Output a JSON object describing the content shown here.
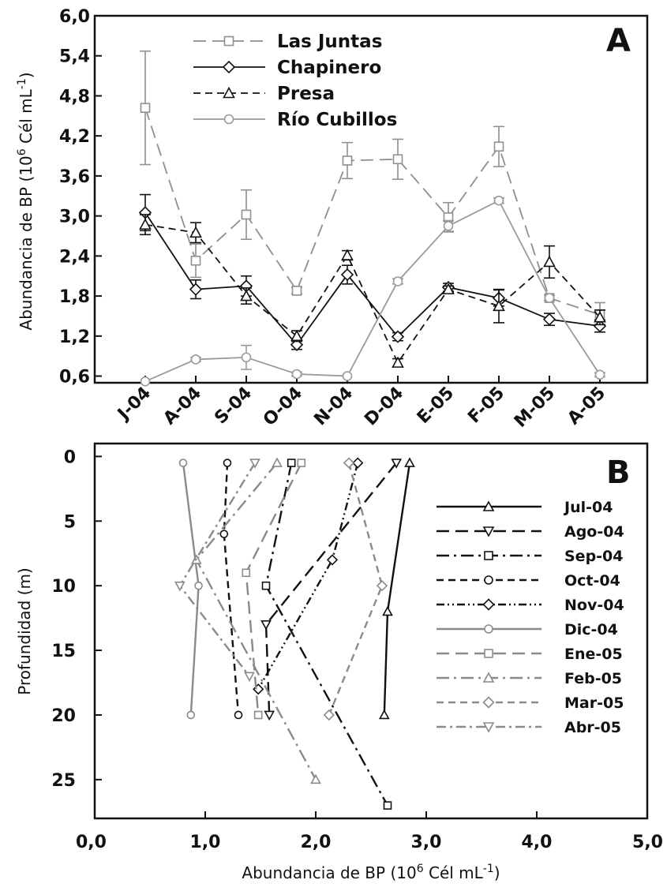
{
  "chart_data": [
    {
      "panel": "A",
      "type": "line",
      "ylabel": "Abundancia de BP  (10^6 Cél mL^-1)",
      "ylabel_parts": [
        "Abundancia de BP  (10",
        "6",
        " Cél  mL",
        "-1",
        ")"
      ],
      "ylim": [
        0.5,
        6.0
      ],
      "yticks": [
        "0,6",
        "1,2",
        "1,8",
        "2,4",
        "3,0",
        "3,6",
        "4,2",
        "4,8",
        "5,4",
        "6,0"
      ],
      "categories": [
        "J-04",
        "A-04",
        "S-04",
        "O-04",
        "N-04",
        "D-04",
        "E-05",
        "F-05",
        "M-05",
        "A-05"
      ],
      "legend_position": "top-left",
      "series": [
        {
          "name": "Las Juntas",
          "marker": "square",
          "dash": "long-dash",
          "color": "#8f8f8f",
          "values": [
            4.62,
            2.33,
            3.02,
            1.88,
            3.83,
            3.85,
            2.98,
            4.04,
            1.77,
            1.52
          ],
          "errors": [
            0.85,
            0.25,
            0.37,
            0.05,
            0.27,
            0.3,
            0.22,
            0.3,
            0.04,
            0.18
          ]
        },
        {
          "name": "Chapinero",
          "marker": "diamond",
          "dash": "solid",
          "color": "#111111",
          "values": [
            3.05,
            1.9,
            1.95,
            1.07,
            2.12,
            1.19,
            1.93,
            1.77,
            1.45,
            1.35
          ],
          "errors": [
            0.27,
            0.14,
            0.15,
            0.07,
            0.14,
            0.06,
            0.06,
            0.12,
            0.09,
            0.09
          ]
        },
        {
          "name": "Presa",
          "marker": "triangle",
          "dash": "dash",
          "color": "#111111",
          "values": [
            2.87,
            2.75,
            1.8,
            1.2,
            2.41,
            0.8,
            1.9,
            1.65,
            2.31,
            1.48
          ],
          "errors": [
            0.15,
            0.15,
            0.12,
            0.08,
            0.07,
            0.06,
            0.05,
            0.25,
            0.24,
            0.11
          ]
        },
        {
          "name": "Río Cubillos",
          "marker": "circle",
          "dash": "solid",
          "color": "#9a9a9a",
          "values": [
            0.52,
            0.85,
            0.88,
            0.63,
            0.6,
            2.02,
            2.85,
            3.23,
            1.77,
            0.62
          ],
          "errors": [
            0.0,
            0.03,
            0.18,
            0.03,
            0.0,
            0.04,
            0.08,
            0.04,
            0.04,
            0.03
          ]
        }
      ]
    },
    {
      "panel": "B",
      "type": "line",
      "xlabel": "Abundancia de BP  (10^6 Cél  mL^-1)",
      "xlabel_parts": [
        "Abundancia de BP  (10",
        "6",
        " Cél  mL",
        "-1",
        ")"
      ],
      "ylabel": "Profundidad   (m)",
      "xlim": [
        0.0,
        5.0
      ],
      "ylim": [
        -1,
        28
      ],
      "y_inverted": true,
      "xticks": [
        "0,0",
        "1,0",
        "2,0",
        "3,0",
        "4,0",
        "5,0"
      ],
      "yticks": [
        "0",
        "5",
        "10",
        "15",
        "20",
        "25"
      ],
      "legend_position": "right",
      "series": [
        {
          "name": "Jul-04",
          "marker": "triangle",
          "dash": "solid",
          "color": "#111111",
          "points": [
            [
              2.85,
              0.5
            ],
            [
              2.65,
              12
            ],
            [
              2.62,
              20
            ]
          ]
        },
        {
          "name": "Ago-04",
          "marker": "triangle-down",
          "dash": "long-dash",
          "color": "#111111",
          "points": [
            [
              2.73,
              0.5
            ],
            [
              1.55,
              13
            ],
            [
              1.58,
              20
            ]
          ]
        },
        {
          "name": "Sep-04",
          "marker": "square",
          "dash": "long-dash-dot",
          "color": "#111111",
          "points": [
            [
              1.78,
              0.5
            ],
            [
              1.55,
              10
            ],
            [
              2.65,
              27
            ]
          ]
        },
        {
          "name": "Oct-04",
          "marker": "circle",
          "dash": "dash",
          "color": "#111111",
          "points": [
            [
              1.2,
              0.5
            ],
            [
              1.17,
              6
            ],
            [
              1.3,
              20
            ]
          ]
        },
        {
          "name": "Nov-04",
          "marker": "diamond",
          "dash": "dash-dot-dot",
          "color": "#111111",
          "points": [
            [
              2.38,
              0.5
            ],
            [
              2.15,
              8
            ],
            [
              1.48,
              18
            ]
          ]
        },
        {
          "name": "Dic-04",
          "marker": "circle",
          "dash": "solid",
          "color": "#8a8a8a",
          "points": [
            [
              0.8,
              0.5
            ],
            [
              0.94,
              10
            ],
            [
              0.87,
              20
            ]
          ]
        },
        {
          "name": "Ene-05",
          "marker": "square",
          "dash": "long-dash",
          "color": "#8a8a8a",
          "points": [
            [
              1.87,
              0.5
            ],
            [
              1.37,
              9
            ],
            [
              1.48,
              20
            ]
          ]
        },
        {
          "name": "Feb-05",
          "marker": "triangle",
          "dash": "long-dash-dot",
          "color": "#8a8a8a",
          "points": [
            [
              1.65,
              0.5
            ],
            [
              0.92,
              8
            ],
            [
              2.0,
              25
            ]
          ]
        },
        {
          "name": "Mar-05",
          "marker": "diamond",
          "dash": "dash",
          "color": "#8a8a8a",
          "points": [
            [
              2.3,
              0.5
            ],
            [
              2.6,
              10
            ],
            [
              2.12,
              20
            ]
          ]
        },
        {
          "name": "Abr-05",
          "marker": "triangle-down",
          "dash": "dash-dot",
          "color": "#8a8a8a",
          "points": [
            [
              1.45,
              0.5
            ],
            [
              0.77,
              10
            ],
            [
              1.4,
              17
            ]
          ]
        }
      ]
    }
  ]
}
